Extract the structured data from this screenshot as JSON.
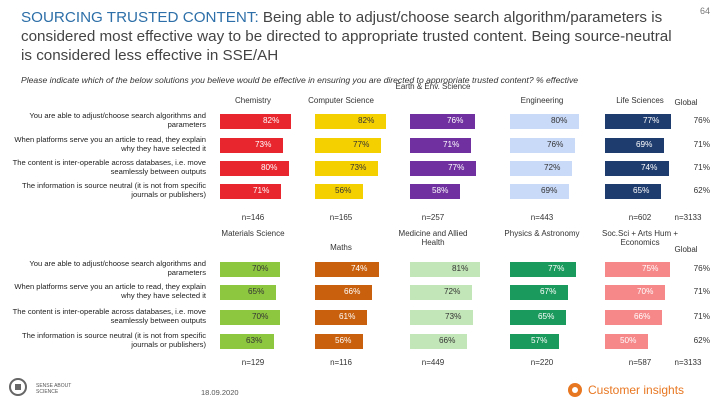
{
  "page_number": "64",
  "title_lead": "SOURCING TRUSTED CONTENT:",
  "title_rest": " Being able to adjust/choose search algorithm/parameters is considered most effective way to be directed to appropriate trusted content. Being source-neutral is considered less effective in SSE/AH",
  "question": "Please indicate which of the below solutions you believe would be effective in ensuring you are directed to appropriate trusted content? % effective",
  "date": "18.09.2020",
  "logo_left_text": "SENSE ABOUT SCIENCE",
  "logo_right_text": "Customer insights",
  "chart_data": [
    {
      "type": "bar",
      "title": "Top panel",
      "categories": [
        "You are able to adjust/choose search algorithms and parameters",
        "When platforms serve you an article to read, they explain why they have selected it",
        "The content is inter-operable across databases, i.e. move seamlessly between outputs",
        "The information is source neutral (it is not from specific journals or publishers)"
      ],
      "series": [
        {
          "name": "Chemistry",
          "color": "#e8262e",
          "n": "n=146",
          "values": [
            82,
            73,
            80,
            71
          ]
        },
        {
          "name": "Computer Science",
          "color": "#f5d000",
          "n": "n=165",
          "values": [
            82,
            77,
            73,
            56
          ]
        },
        {
          "name": "Earth & Env. Science",
          "color": "#7030a0",
          "n": "n=257",
          "values": [
            76,
            71,
            77,
            58
          ]
        },
        {
          "name": "Engineering",
          "color": "#c9daf8",
          "n": "n=443",
          "values": [
            80,
            76,
            72,
            69
          ]
        },
        {
          "name": "Life Sciences",
          "color": "#1f3c6e",
          "n": "n=602",
          "values": [
            77,
            69,
            74,
            65
          ]
        }
      ],
      "global": {
        "name": "Global",
        "n": "n=3133",
        "values": [
          76,
          71,
          71,
          62
        ]
      },
      "xlim": [
        0,
        100
      ]
    },
    {
      "type": "bar",
      "title": "Bottom panel",
      "categories": [
        "You are able to adjust/choose search algorithms and parameters",
        "When platforms serve you an article to read, they explain why they have selected it",
        "The content is inter-operable across databases, i.e. move seamlessly between outputs",
        "The information is source neutral (it is not from specific journals or publishers)"
      ],
      "series": [
        {
          "name": "Materials Science",
          "color": "#8dc63f",
          "n": "n=129",
          "values": [
            70,
            65,
            70,
            63
          ]
        },
        {
          "name": "Maths",
          "color": "#c8600e",
          "n": "n=116",
          "values": [
            74,
            66,
            61,
            56
          ]
        },
        {
          "name": "Medicine and Allied Health",
          "color": "#c3e6b8",
          "n": "n=449",
          "values": [
            81,
            72,
            73,
            66
          ]
        },
        {
          "name": "Physics & Astronomy",
          "color": "#1a9a5c",
          "n": "n=220",
          "values": [
            77,
            67,
            65,
            57
          ]
        },
        {
          "name": "Soc.Sci + Arts Hum + Economics",
          "color": "#f6888a",
          "n": "n=587",
          "values": [
            75,
            70,
            66,
            50
          ]
        }
      ],
      "global": {
        "name": "Global",
        "n": "n=3133",
        "values": [
          76,
          71,
          71,
          62
        ]
      },
      "xlim": [
        0,
        100
      ]
    }
  ]
}
